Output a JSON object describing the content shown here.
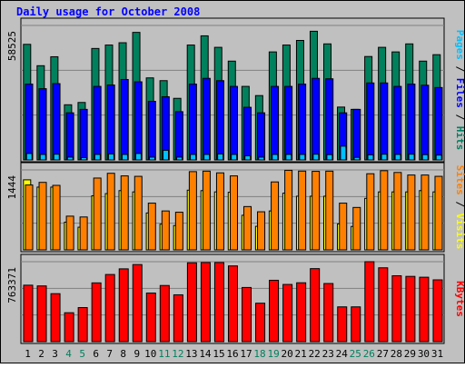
{
  "chart_data": {
    "type": "bar",
    "title": "Daily usage for October 2008",
    "categories": [
      "1",
      "2",
      "3",
      "4",
      "5",
      "6",
      "7",
      "8",
      "9",
      "10",
      "11",
      "12",
      "13",
      "14",
      "15",
      "16",
      "17",
      "18",
      "19",
      "20",
      "21",
      "22",
      "23",
      "24",
      "25",
      "26",
      "27",
      "28",
      "29",
      "30",
      "31"
    ],
    "weekend_days": [
      "4",
      "5",
      "11",
      "12",
      "18",
      "19",
      "25",
      "26"
    ],
    "panels": [
      {
        "id": "top",
        "ymax_label": "58525",
        "ylim": [
          0,
          58525
        ],
        "grid": true,
        "right_label": [
          {
            "text": "Pages",
            "color": "#00c0ff"
          },
          {
            "text": " / ",
            "color": "#000000"
          },
          {
            "text": "Files",
            "color": "#0000ff"
          },
          {
            "text": " / ",
            "color": "#000000"
          },
          {
            "text": "Hits",
            "color": "#008060"
          }
        ],
        "series": [
          {
            "name": "Hits",
            "color": "#00805c",
            "values": [
              50300,
              41000,
              44900,
              24000,
              25000,
              48500,
              50000,
              51000,
              55500,
              35700,
              34500,
              26800,
              50000,
              54000,
              49000,
              43000,
              32000,
              28000,
              47000,
              50000,
              52000,
              56000,
              50500,
              23000,
              22000,
              45000,
              49000,
              47000,
              50500,
              43000,
              45800
            ]
          },
          {
            "name": "Files",
            "color": "#0000ff",
            "values": [
              33000,
              31000,
              33200,
              20500,
              22000,
              32000,
              32600,
              35000,
              34000,
              25500,
              27500,
              21000,
              33000,
              35500,
              34500,
              32000,
              22900,
              20500,
              32000,
              32000,
              33000,
              35500,
              35300,
              20500,
              22000,
              33500,
              33500,
              32000,
              33000,
              32500,
              31500
            ]
          },
          {
            "name": "Pages",
            "color": "#00c0ff",
            "values": [
              2800,
              2400,
              2500,
              1200,
              1000,
              2400,
              2600,
              2400,
              2800,
              1200,
              4200,
              1200,
              2400,
              2400,
              2600,
              2400,
              1800,
              1200,
              2400,
              2400,
              2400,
              2500,
              2300,
              6000,
              1100,
              2200,
              2500,
              2400,
              2500,
              2300,
              2100
            ]
          }
        ]
      },
      {
        "id": "middle",
        "ymax_label": "1444",
        "ylim": [
          0,
          1444
        ],
        "grid": true,
        "right_label": [
          {
            "text": "Sites",
            "color": "#ff8000"
          },
          {
            "text": " / ",
            "color": "#000000"
          },
          {
            "text": "Visits",
            "color": "#ffff00"
          }
        ],
        "series": [
          {
            "name": "Visits",
            "color": "#ffff00",
            "values": [
              1265,
              1133,
              1133,
              500,
              409,
              977,
              1016,
              1070,
              1047,
              666,
              464,
              440,
              1078,
              1070,
              1047,
              1040,
              625,
              425,
              703,
              1024,
              969,
              969,
              969,
              469,
              423,
              930,
              1047,
              1047,
              1047,
              1070,
              1047
            ]
          },
          {
            "name": "Sites",
            "color": "#ff8000",
            "values": [
              1172,
              1219,
              1165,
              609,
              594,
              1297,
              1383,
              1336,
              1328,
              844,
              703,
              680,
              1413,
              1422,
              1391,
              1336,
              782,
              688,
              1227,
              1437,
              1423,
              1418,
              1422,
              844,
              766,
              1375,
              1430,
              1398,
              1352,
              1352,
              1328
            ]
          }
        ]
      },
      {
        "id": "bottom",
        "ymax_label": "763371",
        "ylim": [
          0,
          763371
        ],
        "grid": true,
        "right_label": [
          {
            "text": "KBytes",
            "color": "#ff0000"
          }
        ],
        "series": [
          {
            "name": "KBytes",
            "color": "#ff0000",
            "values": [
              539000,
              532000,
              458000,
              276000,
              325000,
              561000,
              641000,
              695000,
              736000,
              464000,
              536000,
              447000,
              753000,
              755000,
              755000,
              723000,
              517000,
              367000,
              586000,
              546000,
              562000,
              697000,
              555000,
              332000,
              332000,
              763371,
              705000,
              629000,
              623000,
              615000,
              590000
            ]
          }
        ]
      }
    ]
  }
}
